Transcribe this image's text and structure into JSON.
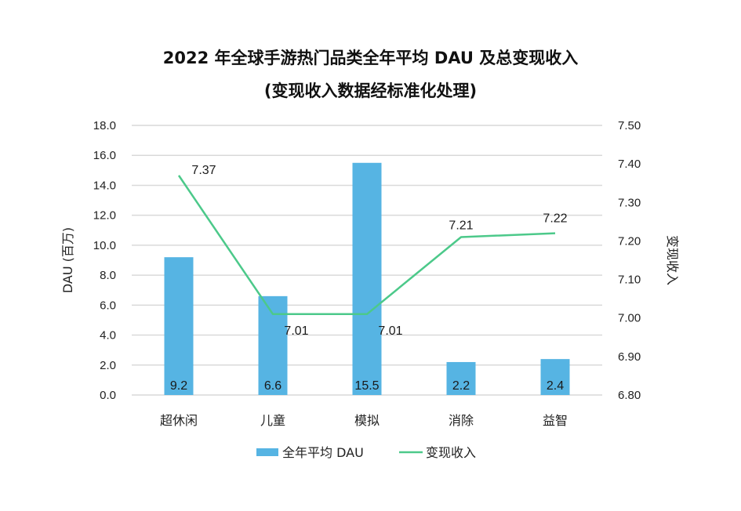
{
  "chart_data": {
    "type": "bar+line",
    "title": "2022 年全球手游热门品类全年平均 DAU 及总变现收入",
    "subtitle": "(变现收入数据经标准化处理)",
    "categories": [
      "超休闲",
      "儿童",
      "模拟",
      "消除",
      "益智"
    ],
    "series": [
      {
        "name": "全年平均 DAU",
        "type": "bar",
        "axis": "left",
        "color": "#56b4e3",
        "values": [
          9.2,
          6.6,
          15.5,
          2.2,
          2.4
        ],
        "labels": [
          "9.2",
          "6.6",
          "15.5",
          "2.2",
          "2.4"
        ]
      },
      {
        "name": "变现收入",
        "type": "line",
        "axis": "right",
        "color": "#4cc98a",
        "values": [
          7.37,
          7.01,
          7.01,
          7.21,
          7.22
        ],
        "labels": [
          "7.37",
          "7.01",
          "7.01",
          "7.21",
          "7.22"
        ]
      }
    ],
    "ylabel": "DAU (百万)",
    "y2label": "变现收入",
    "ylim": [
      0,
      18
    ],
    "y2lim": [
      6.8,
      7.5
    ],
    "yticks": [
      "0.0",
      "2.0",
      "4.0",
      "6.0",
      "8.0",
      "10.0",
      "12.0",
      "14.0",
      "16.0",
      "18.0"
    ],
    "y2ticks": [
      "6.80",
      "6.90",
      "7.00",
      "7.10",
      "7.20",
      "7.30",
      "7.40",
      "7.50"
    ],
    "grid": true,
    "legend_position": "bottom"
  }
}
